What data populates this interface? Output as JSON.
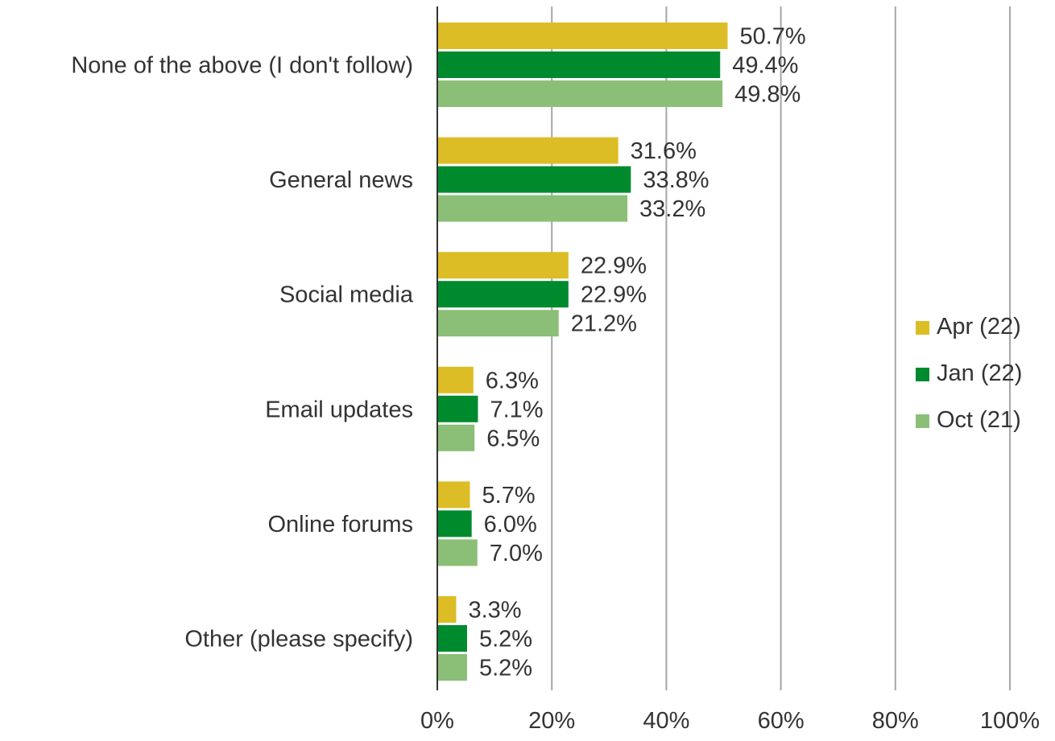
{
  "chart_data": {
    "type": "bar",
    "orientation": "horizontal",
    "categories": [
      "None of the above (I don't follow)",
      "General news",
      "Social media",
      "Email updates",
      "Online forums",
      "Other (please specify)"
    ],
    "series": [
      {
        "name": "Apr (22)",
        "color": "#dcbd25",
        "values": [
          50.7,
          31.6,
          22.9,
          6.3,
          5.7,
          3.3
        ],
        "labels": [
          "50.7%",
          "31.6%",
          "22.9%",
          "6.3%",
          "5.7%",
          "3.3%"
        ]
      },
      {
        "name": "Jan (22)",
        "color": "#008a2e",
        "values": [
          49.4,
          33.8,
          22.9,
          7.1,
          6.0,
          5.2
        ],
        "labels": [
          "49.4%",
          "33.8%",
          "22.9%",
          "7.1%",
          "6.0%",
          "5.2%"
        ]
      },
      {
        "name": "Oct (21)",
        "color": "#8bbf77",
        "values": [
          49.8,
          33.2,
          21.2,
          6.5,
          7.0,
          5.2
        ],
        "labels": [
          "49.8%",
          "33.2%",
          "21.2%",
          "6.5%",
          "7.0%",
          "5.2%"
        ]
      }
    ],
    "x_ticks": [
      "0%",
      "20%",
      "40%",
      "60%",
      "80%",
      "100%"
    ],
    "xlim": [
      0,
      100
    ],
    "grid": true,
    "legend_position": "right"
  }
}
